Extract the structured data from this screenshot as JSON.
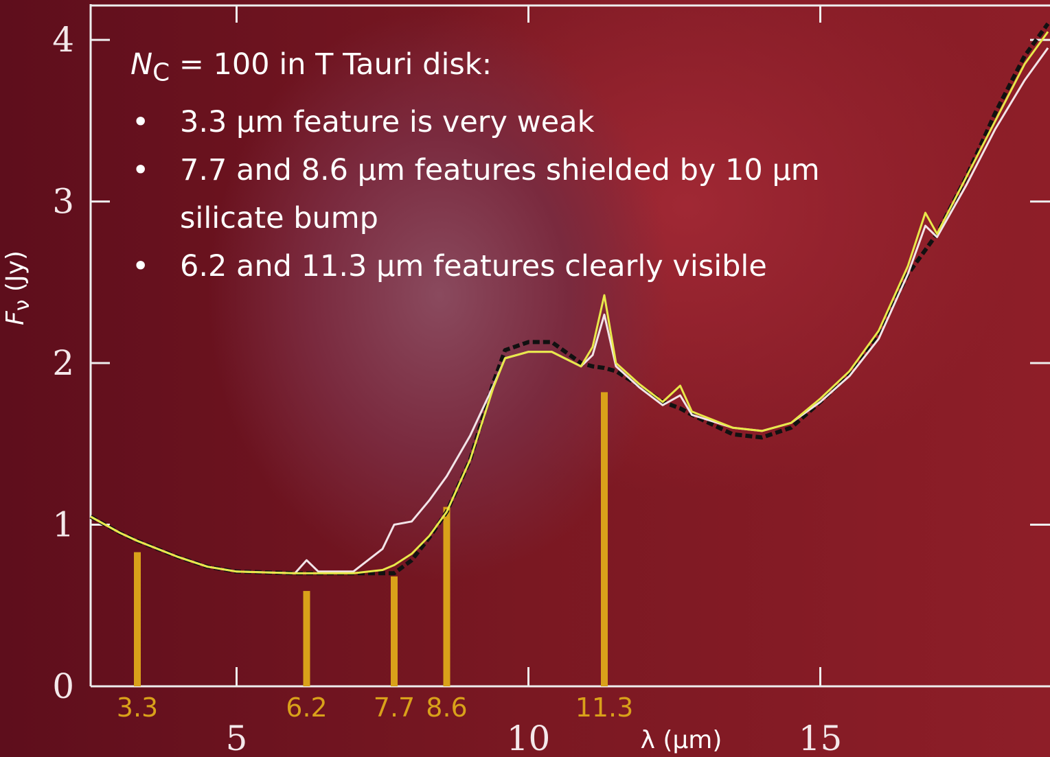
{
  "chart_data": {
    "type": "line",
    "annotation": {
      "symbol": "N",
      "subscript": "C",
      "text": "= 100 in T Tauri disk:",
      "bullets": [
        "3.3 µm feature is very weak",
        "7.7 and 8.6 µm features shielded by 10 µm silicate bump",
        "6.2 and 11.3 µm features clearly visible"
      ]
    },
    "y_label": {
      "symbol": "F",
      "subscript": "ν",
      "text": "(Jy)"
    },
    "x_label": "λ (µm)",
    "xlim": [
      2.5,
      18.9
    ],
    "ylim": [
      0,
      4.2
    ],
    "xticks": [
      5,
      10,
      15
    ],
    "yticks": [
      0,
      1,
      2,
      3,
      4
    ],
    "x": [
      2.5,
      3,
      3.3,
      4,
      4.5,
      5,
      6,
      6.2,
      6.4,
      7,
      7.5,
      7.7,
      8,
      8.3,
      8.6,
      9,
      9.4,
      9.6,
      10,
      10.4,
      10.9,
      11.1,
      11.3,
      11.5,
      11.9,
      12.3,
      12.6,
      12.8,
      13.5,
      14,
      14.5,
      15,
      15.5,
      16,
      16.5,
      16.8,
      17,
      17.5,
      18,
      18.5,
      18.9
    ],
    "series": [
      {
        "color": "#111111",
        "dash": true,
        "values": [
          1.05,
          0.95,
          0.9,
          0.8,
          0.74,
          0.71,
          0.7,
          0.7,
          0.7,
          0.7,
          0.7,
          0.7,
          0.78,
          0.92,
          1.08,
          1.4,
          1.88,
          2.08,
          2.13,
          2.13,
          2.0,
          1.98,
          1.97,
          1.95,
          1.86,
          1.76,
          1.72,
          1.68,
          1.56,
          1.54,
          1.6,
          1.76,
          1.93,
          2.18,
          2.55,
          2.7,
          2.8,
          3.15,
          3.55,
          3.9,
          4.1
        ]
      },
      {
        "color": "#f2e4e8",
        "values": [
          1.05,
          0.95,
          0.9,
          0.8,
          0.74,
          0.71,
          0.7,
          0.78,
          0.71,
          0.71,
          0.85,
          1.0,
          1.02,
          1.15,
          1.3,
          1.55,
          1.86,
          2.03,
          2.07,
          2.07,
          1.98,
          2.05,
          2.3,
          1.98,
          1.85,
          1.74,
          1.8,
          1.68,
          1.6,
          1.58,
          1.63,
          1.76,
          1.92,
          2.15,
          2.55,
          2.85,
          2.78,
          3.1,
          3.45,
          3.75,
          3.95
        ]
      },
      {
        "color": "#e8e84a",
        "values": [
          1.05,
          0.95,
          0.9,
          0.8,
          0.74,
          0.71,
          0.7,
          0.7,
          0.7,
          0.7,
          0.72,
          0.75,
          0.82,
          0.93,
          1.08,
          1.4,
          1.85,
          2.03,
          2.07,
          2.07,
          1.98,
          2.1,
          2.42,
          2.0,
          1.87,
          1.76,
          1.86,
          1.7,
          1.6,
          1.58,
          1.63,
          1.78,
          1.95,
          2.2,
          2.6,
          2.93,
          2.8,
          3.15,
          3.5,
          3.85,
          4.05
        ]
      }
    ],
    "features": {
      "color": "#d9a11a",
      "x": [
        3.3,
        6.2,
        7.7,
        8.6,
        11.3
      ],
      "values": [
        0.83,
        0.59,
        0.68,
        1.11,
        1.82
      ]
    }
  }
}
